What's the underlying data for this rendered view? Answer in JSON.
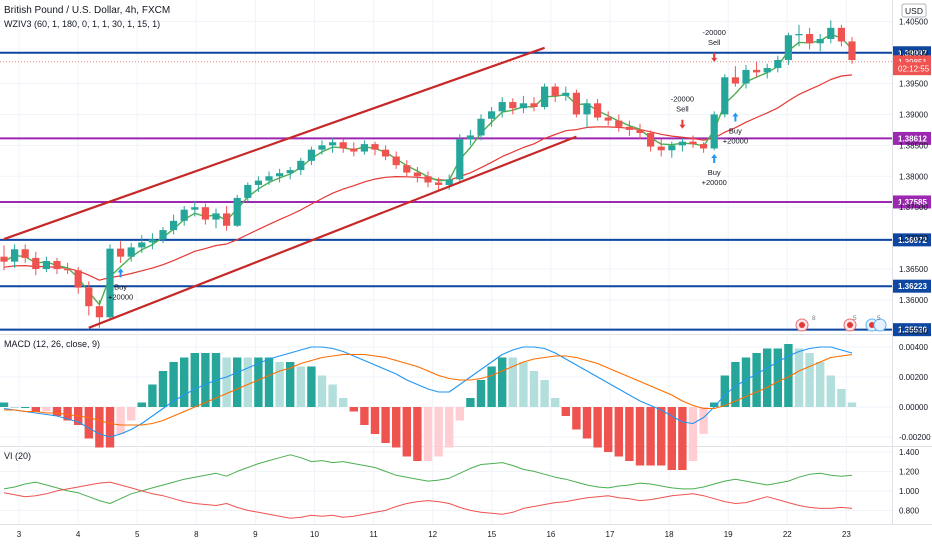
{
  "header": {
    "title": "British Pound / U.S. Dollar, 4h, FXCM",
    "indicator": "WZIV3 (60, 1, 180, 0, 1, 1, 30, 1, 15, 1)",
    "currency": "USD"
  },
  "colors": {
    "bull": "#26a69a",
    "bear": "#ef5350",
    "hline_blue": "#0d47a1",
    "hline_purple": "#9c27b0",
    "channel": "#c62828",
    "fast_ma": "#4caf50",
    "slow_ma": "#e53935",
    "macd_line": "#2196f3",
    "signal_line": "#ff6d00",
    "vi_plus": "#4caf50",
    "vi_minus": "#ef5350"
  },
  "chart_data": [
    {
      "type": "candlestick",
      "title": "British Pound / U.S. Dollar, 4h, FXCM",
      "y_axis": {
        "ticks": [
          "1.40500",
          "1.40000",
          "1.39500",
          "1.39000",
          "1.38500",
          "1.38000",
          "1.37500",
          "1.37000",
          "1.36500",
          "1.36000",
          "1.35500"
        ]
      },
      "x_axis": {
        "ticks": [
          "3",
          "4",
          "5",
          "8",
          "9",
          "10",
          "11",
          "12",
          "15",
          "16",
          "17",
          "18",
          "19",
          "22",
          "23"
        ]
      },
      "ylim": [
        1.3545,
        1.4085
      ],
      "candles": [
        [
          1.367,
          1.3688,
          1.3648,
          1.3662
        ],
        [
          1.3662,
          1.369,
          1.3652,
          1.3682
        ],
        [
          1.3682,
          1.369,
          1.366,
          1.3668
        ],
        [
          1.3668,
          1.3678,
          1.364,
          1.365
        ],
        [
          1.365,
          1.367,
          1.3645,
          1.3663
        ],
        [
          1.3663,
          1.3668,
          1.3642,
          1.365
        ],
        [
          1.365,
          1.366,
          1.3642,
          1.3648
        ],
        [
          1.3648,
          1.3653,
          1.361,
          1.362
        ],
        [
          1.362,
          1.363,
          1.3575,
          1.359
        ],
        [
          1.359,
          1.36,
          1.3555,
          1.3572
        ],
        [
          1.3572,
          1.369,
          1.3568,
          1.3683
        ],
        [
          1.3683,
          1.3695,
          1.366,
          1.367
        ],
        [
          1.367,
          1.3692,
          1.3662,
          1.3685
        ],
        [
          1.3685,
          1.3705,
          1.3676,
          1.3693
        ],
        [
          1.3693,
          1.3708,
          1.3682,
          1.3698
        ],
        [
          1.3698,
          1.3718,
          1.3692,
          1.3713
        ],
        [
          1.3713,
          1.3738,
          1.3706,
          1.3728
        ],
        [
          1.3728,
          1.3752,
          1.372,
          1.3746
        ],
        [
          1.3746,
          1.376,
          1.3735,
          1.375
        ],
        [
          1.375,
          1.3756,
          1.3722,
          1.373
        ],
        [
          1.373,
          1.3748,
          1.3716,
          1.374
        ],
        [
          1.374,
          1.3752,
          1.3712,
          1.372
        ],
        [
          1.372,
          1.377,
          1.3718,
          1.3765
        ],
        [
          1.3765,
          1.379,
          1.3758,
          1.3786
        ],
        [
          1.3786,
          1.38,
          1.3775,
          1.3793
        ],
        [
          1.3793,
          1.3808,
          1.3786,
          1.38
        ],
        [
          1.38,
          1.3812,
          1.379,
          1.3805
        ],
        [
          1.3805,
          1.3815,
          1.3795,
          1.381
        ],
        [
          1.381,
          1.383,
          1.3802,
          1.3825
        ],
        [
          1.3825,
          1.3848,
          1.3818,
          1.3843
        ],
        [
          1.3843,
          1.3858,
          1.3835,
          1.385
        ],
        [
          1.385,
          1.3862,
          1.3838,
          1.3855
        ],
        [
          1.3855,
          1.386,
          1.3838,
          1.3845
        ],
        [
          1.3845,
          1.3855,
          1.3832,
          1.384
        ],
        [
          1.384,
          1.3858,
          1.3835,
          1.3852
        ],
        [
          1.3852,
          1.3856,
          1.3834,
          1.3843
        ],
        [
          1.3843,
          1.385,
          1.3826,
          1.3832
        ],
        [
          1.3832,
          1.384,
          1.3812,
          1.3818
        ],
        [
          1.3818,
          1.3826,
          1.38,
          1.3806
        ],
        [
          1.3806,
          1.3815,
          1.379,
          1.38
        ],
        [
          1.38,
          1.3808,
          1.3782,
          1.379
        ],
        [
          1.379,
          1.3798,
          1.3778,
          1.3786
        ],
        [
          1.3786,
          1.3803,
          1.3778,
          1.3795
        ],
        [
          1.3795,
          1.3868,
          1.379,
          1.386
        ],
        [
          1.386,
          1.3875,
          1.385,
          1.3866
        ],
        [
          1.3866,
          1.39,
          1.3858,
          1.3893
        ],
        [
          1.3893,
          1.3912,
          1.388,
          1.3905
        ],
        [
          1.3905,
          1.3928,
          1.3895,
          1.392
        ],
        [
          1.392,
          1.3926,
          1.39,
          1.391
        ],
        [
          1.391,
          1.393,
          1.3902,
          1.3918
        ],
        [
          1.3918,
          1.3928,
          1.3905,
          1.3912
        ],
        [
          1.3912,
          1.395,
          1.3908,
          1.3945
        ],
        [
          1.3945,
          1.395,
          1.392,
          1.393
        ],
        [
          1.393,
          1.3945,
          1.3922,
          1.3935
        ],
        [
          1.3935,
          1.394,
          1.3895,
          1.39
        ],
        [
          1.39,
          1.3925,
          1.3878,
          1.3918
        ],
        [
          1.3918,
          1.3925,
          1.389,
          1.3895
        ],
        [
          1.3895,
          1.3905,
          1.3882,
          1.389
        ],
        [
          1.389,
          1.39,
          1.3872,
          1.388
        ],
        [
          1.388,
          1.389,
          1.3865,
          1.3875
        ],
        [
          1.3875,
          1.3885,
          1.386,
          1.387
        ],
        [
          1.387,
          1.3874,
          1.384,
          1.3848
        ],
        [
          1.3848,
          1.386,
          1.3832,
          1.3842
        ],
        [
          1.3842,
          1.3856,
          1.383,
          1.385
        ],
        [
          1.385,
          1.3862,
          1.384,
          1.3856
        ],
        [
          1.3856,
          1.3866,
          1.3846,
          1.3852
        ],
        [
          1.3852,
          1.3855,
          1.3838,
          1.3845
        ],
        [
          1.3845,
          1.3905,
          1.3842,
          1.39
        ],
        [
          1.39,
          1.3965,
          1.3895,
          1.396
        ],
        [
          1.396,
          1.3978,
          1.3945,
          1.395
        ],
        [
          1.395,
          1.398,
          1.3942,
          1.3972
        ],
        [
          1.3972,
          1.3985,
          1.396,
          1.3968
        ],
        [
          1.3968,
          1.3982,
          1.3958,
          1.3975
        ],
        [
          1.3975,
          1.3995,
          1.3968,
          1.3988
        ],
        [
          1.3988,
          1.4032,
          1.398,
          1.4028
        ],
        [
          1.4028,
          1.4045,
          1.401,
          1.403
        ],
        [
          1.403,
          1.404,
          1.4005,
          1.4015
        ],
        [
          1.4015,
          1.403,
          1.4002,
          1.4022
        ],
        [
          1.4022,
          1.4052,
          1.4015,
          1.404
        ],
        [
          1.404,
          1.4045,
          1.401,
          1.4018
        ],
        [
          1.4018,
          1.4025,
          1.3982,
          1.3988
        ]
      ],
      "horizontal_levels": [
        {
          "value": 1.3552,
          "label": "1.35520",
          "color": "blue"
        },
        {
          "value": 1.36223,
          "label": "1.36223",
          "color": "blue"
        },
        {
          "value": 1.36972,
          "label": "1.36972",
          "color": "blue"
        },
        {
          "value": 1.37585,
          "label": "1.37585",
          "color": "purple"
        },
        {
          "value": 1.38612,
          "label": "1.38612",
          "color": "purple"
        },
        {
          "value": 1.39997,
          "label": "1.39997",
          "color": "blue"
        }
      ],
      "price_tags": [
        {
          "label": "1.39851",
          "value": 1.39851
        },
        {
          "label": "02:12:55",
          "value": 1.3974
        }
      ],
      "channel": {
        "upper": [
          [
            0,
            1.36985
          ],
          [
            51,
            1.40077
          ]
        ],
        "lower": [
          [
            8,
            1.3555
          ],
          [
            54,
            1.38641
          ]
        ]
      },
      "signals": [
        {
          "type": "buy",
          "label": "Buy\n+20000",
          "bar": 11,
          "value": 1.3643
        },
        {
          "type": "sell",
          "label": "-20000\nSell",
          "bar": 64,
          "value": 1.3885
        },
        {
          "type": "sell",
          "label": "-20000\nSell",
          "bar": 67,
          "value": 1.3993
        },
        {
          "type": "buy",
          "label": "Buy\n+20000",
          "bar": 67,
          "value": 1.3828
        },
        {
          "type": "buy",
          "label": "Buy\n+20000",
          "bar": 69,
          "value": 1.3895
        }
      ]
    },
    {
      "type": "line",
      "title": "MACD (12, 26, close, 9)",
      "y_axis": {
        "ticks": [
          "0.00400",
          "0.00200",
          "0.00000",
          "-0.00200"
        ]
      },
      "ylim": [
        -0.0026,
        0.0048
      ],
      "series": [
        {
          "name": "MACD",
          "values": [
            -0.0001,
            -0.0002,
            -0.0003,
            -0.0004,
            -0.0005,
            -0.0006,
            -0.0008,
            -0.001,
            -0.0014,
            -0.0018,
            -0.002,
            -0.0018,
            -0.0015,
            -0.0011,
            -0.0006,
            -0.0001,
            0.0004,
            0.0008,
            0.0012,
            0.0015,
            0.0018,
            0.002,
            0.0023,
            0.0026,
            0.0029,
            0.0032,
            0.0034,
            0.0036,
            0.0038,
            0.004,
            0.004,
            0.0039,
            0.0037,
            0.0034,
            0.0031,
            0.0028,
            0.0025,
            0.0022,
            0.0018,
            0.0015,
            0.0012,
            0.001,
            0.001,
            0.0015,
            0.002,
            0.0025,
            0.003,
            0.0035,
            0.0038,
            0.004,
            0.004,
            0.0039,
            0.0036,
            0.0032,
            0.0028,
            0.0024,
            0.002,
            0.0016,
            0.0012,
            0.0008,
            0.0004,
            0.0001,
            -0.0002,
            -0.0006,
            -0.001,
            -0.0011,
            -0.0007,
            0.0,
            0.0008,
            0.0014,
            0.0018,
            0.0022,
            0.0026,
            0.003,
            0.0034,
            0.0037,
            0.0039,
            0.004,
            0.004,
            0.0038,
            0.0036
          ]
        },
        {
          "name": "Signal",
          "values": [
            -0.0002,
            -0.0002,
            -0.0003,
            -0.0003,
            -0.0004,
            -0.0004,
            -0.0005,
            -0.0006,
            -0.0007,
            -0.0009,
            -0.0011,
            -0.0012,
            -0.0012,
            -0.0012,
            -0.0011,
            -0.0009,
            -0.0006,
            -0.0003,
            0.0,
            0.0003,
            0.0006,
            0.0009,
            0.0012,
            0.0015,
            0.0018,
            0.0021,
            0.0024,
            0.0026,
            0.0029,
            0.0031,
            0.0033,
            0.0034,
            0.0035,
            0.0035,
            0.0035,
            0.0034,
            0.0033,
            0.0031,
            0.0029,
            0.0027,
            0.0024,
            0.0021,
            0.0019,
            0.0018,
            0.0018,
            0.0019,
            0.0021,
            0.0024,
            0.0027,
            0.003,
            0.0032,
            0.0033,
            0.0034,
            0.0034,
            0.0033,
            0.0031,
            0.0029,
            0.0026,
            0.0023,
            0.002,
            0.0017,
            0.0014,
            0.0011,
            0.0008,
            0.0004,
            0.0001,
            -0.0001,
            -0.0001,
            0.0001,
            0.0004,
            0.0007,
            0.001,
            0.0013,
            0.0017,
            0.002,
            0.0024,
            0.0027,
            0.003,
            0.0033,
            0.0034,
            0.0035
          ]
        }
      ],
      "histogram_from": "MACD - Signal"
    },
    {
      "type": "line",
      "title": "VI (20)",
      "y_axis": {
        "ticks": [
          "1.400",
          "1.200",
          "1.000",
          "0.800"
        ]
      },
      "ylim": [
        0.66,
        1.45
      ],
      "series": [
        {
          "name": "VI+",
          "values": [
            1.02,
            1.04,
            1.07,
            1.09,
            1.06,
            1.03,
            1.0,
            0.98,
            0.94,
            0.9,
            0.87,
            0.92,
            0.97,
            1.0,
            1.03,
            1.06,
            1.09,
            1.12,
            1.14,
            1.16,
            1.18,
            1.15,
            1.2,
            1.24,
            1.28,
            1.31,
            1.34,
            1.37,
            1.34,
            1.3,
            1.31,
            1.29,
            1.3,
            1.28,
            1.26,
            1.24,
            1.2,
            1.16,
            1.14,
            1.12,
            1.1,
            1.11,
            1.13,
            1.18,
            1.23,
            1.27,
            1.28,
            1.29,
            1.26,
            1.22,
            1.2,
            1.17,
            1.14,
            1.12,
            1.09,
            1.06,
            1.04,
            1.03,
            1.05,
            1.06,
            1.08,
            1.07,
            1.05,
            1.03,
            1.02,
            1.02,
            1.04,
            1.07,
            1.1,
            1.12,
            1.1,
            1.08,
            1.06,
            1.08,
            1.1,
            1.14,
            1.17,
            1.18,
            1.16,
            1.15,
            1.16
          ]
        },
        {
          "name": "VI-",
          "values": [
            0.98,
            0.96,
            0.94,
            0.95,
            0.97,
            1.0,
            1.02,
            1.04,
            1.06,
            1.08,
            1.09,
            1.06,
            1.03,
            1.0,
            0.97,
            0.95,
            0.92,
            0.89,
            0.87,
            0.86,
            0.85,
            0.87,
            0.83,
            0.8,
            0.78,
            0.76,
            0.74,
            0.72,
            0.73,
            0.75,
            0.74,
            0.75,
            0.73,
            0.74,
            0.76,
            0.78,
            0.8,
            0.84,
            0.87,
            0.89,
            0.9,
            0.89,
            0.87,
            0.83,
            0.8,
            0.78,
            0.77,
            0.76,
            0.78,
            0.82,
            0.84,
            0.86,
            0.88,
            0.89,
            0.91,
            0.93,
            0.94,
            0.95,
            0.93,
            0.92,
            0.9,
            0.91,
            0.93,
            0.95,
            0.96,
            0.97,
            0.95,
            0.92,
            0.89,
            0.87,
            0.88,
            0.91,
            0.94,
            0.91,
            0.88,
            0.85,
            0.83,
            0.82,
            0.82,
            0.83,
            0.82
          ]
        }
      ]
    }
  ],
  "legend_badges": [
    "8",
    "5",
    "5"
  ]
}
